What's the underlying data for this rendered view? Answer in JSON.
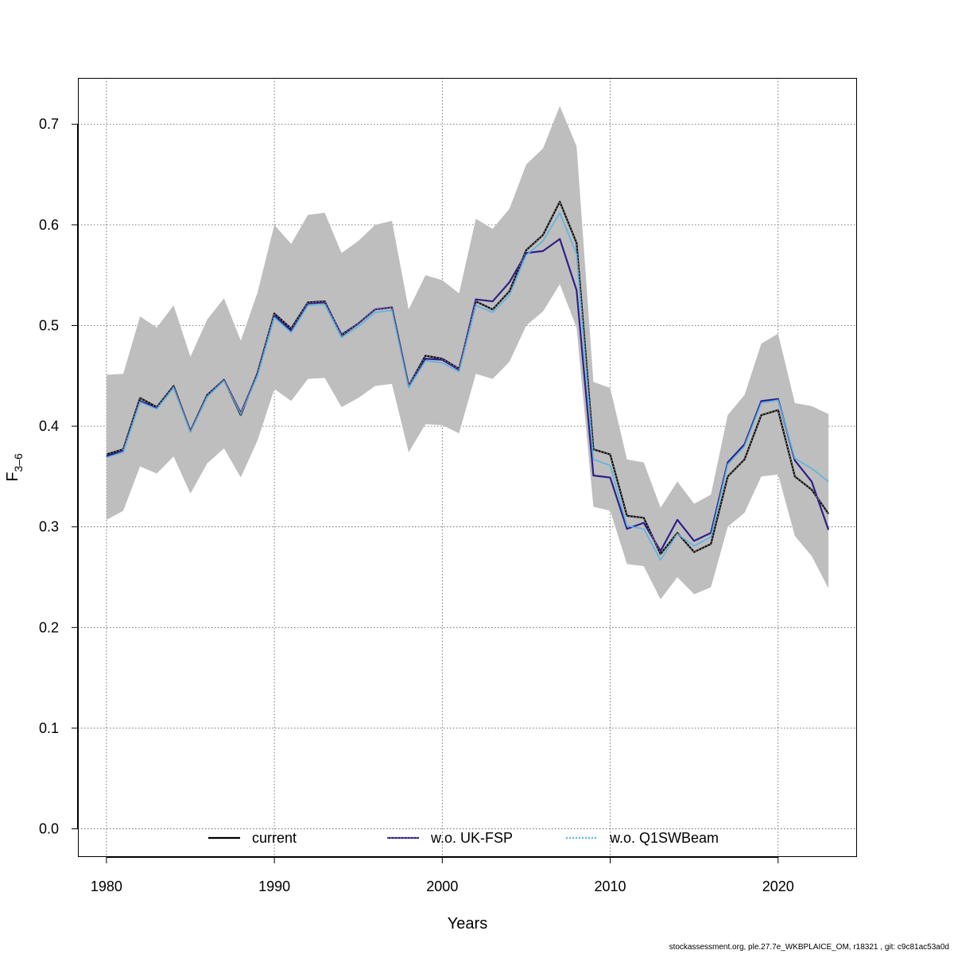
{
  "chart_data": {
    "type": "line",
    "xlabel": "Years",
    "ylabel_main": "F",
    "ylabel_sub": "3–6",
    "xlim": [
      1978.3,
      2024.7
    ],
    "ylim": [
      -0.028,
      0.746
    ],
    "xticks": [
      1980,
      1990,
      2000,
      2010,
      2020
    ],
    "xtick_labels": [
      "1980",
      "1990",
      "2000",
      "2010",
      "2020"
    ],
    "yticks": [
      0.0,
      0.1,
      0.2,
      0.3,
      0.4,
      0.5,
      0.6,
      0.7
    ],
    "ytick_labels": [
      "0.0",
      "0.1",
      "0.2",
      "0.3",
      "0.4",
      "0.5",
      "0.6",
      "0.7"
    ],
    "grid": true,
    "legend_position": "bottom",
    "x": [
      1980,
      1981,
      1982,
      1983,
      1984,
      1985,
      1986,
      1987,
      1988,
      1989,
      1990,
      1991,
      1992,
      1993,
      1994,
      1995,
      1996,
      1997,
      1998,
      1999,
      2000,
      2001,
      2002,
      2003,
      2004,
      2005,
      2006,
      2007,
      2008,
      2009,
      2010,
      2011,
      2012,
      2013,
      2014,
      2015,
      2016,
      2017,
      2018,
      2019,
      2020,
      2021,
      2022,
      2023
    ],
    "confidence_band": {
      "color": "#bebebe",
      "upper": [
        0.451,
        0.452,
        0.509,
        0.498,
        0.52,
        0.469,
        0.506,
        0.527,
        0.485,
        0.533,
        0.6,
        0.581,
        0.61,
        0.612,
        0.572,
        0.584,
        0.6,
        0.604,
        0.516,
        0.55,
        0.545,
        0.532,
        0.606,
        0.596,
        0.616,
        0.66,
        0.676,
        0.718,
        0.678,
        0.444,
        0.438,
        0.367,
        0.364,
        0.319,
        0.345,
        0.323,
        0.332,
        0.411,
        0.431,
        0.482,
        0.492,
        0.423,
        0.42,
        0.412
      ],
      "lower": [
        0.307,
        0.316,
        0.36,
        0.353,
        0.37,
        0.333,
        0.363,
        0.378,
        0.349,
        0.386,
        0.437,
        0.425,
        0.447,
        0.448,
        0.419,
        0.428,
        0.44,
        0.442,
        0.374,
        0.402,
        0.401,
        0.393,
        0.452,
        0.447,
        0.464,
        0.5,
        0.514,
        0.541,
        0.498,
        0.32,
        0.316,
        0.263,
        0.261,
        0.228,
        0.25,
        0.233,
        0.24,
        0.3,
        0.314,
        0.35,
        0.352,
        0.291,
        0.271,
        0.239
      ]
    },
    "series": [
      {
        "name": "current",
        "color": "#000000",
        "style": "solid",
        "values": [
          0.372,
          0.377,
          0.428,
          0.419,
          0.44,
          0.395,
          0.431,
          0.446,
          0.411,
          0.453,
          0.512,
          0.497,
          0.523,
          0.524,
          0.49,
          0.502,
          0.516,
          0.518,
          0.44,
          0.47,
          0.467,
          0.457,
          0.524,
          0.516,
          0.534,
          0.575,
          0.59,
          0.623,
          0.582,
          0.377,
          0.372,
          0.311,
          0.309,
          0.273,
          0.294,
          0.275,
          0.283,
          0.35,
          0.367,
          0.411,
          0.416,
          0.35,
          0.337,
          0.313
        ]
      },
      {
        "name": "w.o. UK-FSP",
        "color": "#2e1f8a",
        "style": "solid",
        "values": [
          0.37,
          0.376,
          0.425,
          0.418,
          0.439,
          0.395,
          0.43,
          0.446,
          0.413,
          0.452,
          0.51,
          0.495,
          0.522,
          0.523,
          0.491,
          0.502,
          0.516,
          0.518,
          0.44,
          0.467,
          0.466,
          0.456,
          0.526,
          0.524,
          0.543,
          0.572,
          0.574,
          0.586,
          0.535,
          0.351,
          0.349,
          0.298,
          0.304,
          0.276,
          0.307,
          0.286,
          0.294,
          0.364,
          0.382,
          0.425,
          0.427,
          0.366,
          0.345,
          0.297
        ]
      },
      {
        "name": "w.o. Q1SWBeam",
        "color": "#5ab4e6",
        "style": "dotted",
        "values": [
          0.369,
          0.374,
          0.424,
          0.417,
          0.438,
          0.394,
          0.429,
          0.445,
          0.412,
          0.45,
          0.508,
          0.493,
          0.52,
          0.521,
          0.488,
          0.499,
          0.513,
          0.515,
          0.438,
          0.465,
          0.463,
          0.454,
          0.52,
          0.513,
          0.53,
          0.57,
          0.584,
          0.612,
          0.571,
          0.367,
          0.361,
          0.301,
          0.298,
          0.267,
          0.293,
          0.281,
          0.29,
          0.362,
          0.38,
          0.423,
          0.426,
          0.368,
          0.358,
          0.345
        ]
      }
    ]
  },
  "footer_text": "stockassessment.org, ple.27.7e_WKBPLAICE_OM, r18321 , git: c9c81ac53a0d"
}
